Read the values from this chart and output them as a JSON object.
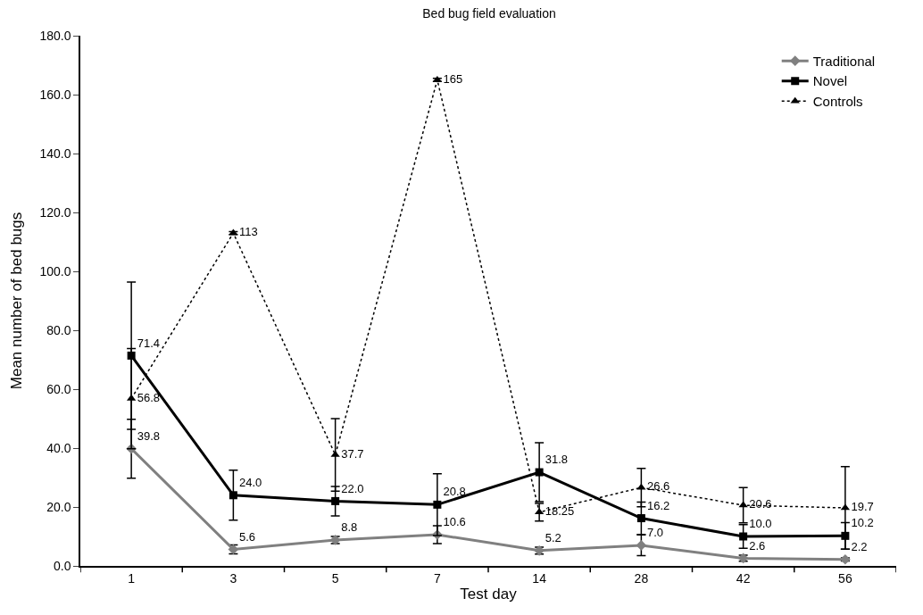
{
  "chart_data": {
    "type": "line",
    "title": "Bed bug field evaluation",
    "xlabel": "Test day",
    "ylabel": "Mean number of bed bugs",
    "categories": [
      "1",
      "3",
      "5",
      "7",
      "14",
      "28",
      "42",
      "56"
    ],
    "series": [
      {
        "name": "Traditional",
        "color": "#808080",
        "marker": "diamond",
        "line_style": "solid",
        "values": [
          39.8,
          5.6,
          8.8,
          10.6,
          5.2,
          7.0,
          2.6,
          2.2
        ],
        "errors": [
          10,
          1.5,
          1.2,
          3,
          1.2,
          3.5,
          1,
          0.5
        ],
        "value_labels": [
          "39.8",
          "5.6",
          "8.8",
          "10.6",
          "5.2",
          "7.0",
          "2.6",
          "2.2"
        ]
      },
      {
        "name": "Novel",
        "color": "#000000",
        "marker": "square",
        "line_style": "solid",
        "values": [
          71.4,
          24.0,
          22.0,
          20.8,
          31.8,
          16.2,
          10.0,
          10.2
        ],
        "errors": [
          25,
          8.5,
          5,
          10.5,
          10,
          5.5,
          4,
          4.5
        ],
        "value_labels": [
          "71.4",
          "24.0",
          "22.0",
          "20.8",
          "31.8",
          "16.2",
          "10.0",
          "10.2"
        ]
      },
      {
        "name": "Controls",
        "color": "#000000",
        "marker": "triangle",
        "line_style": "dotted",
        "values": [
          56.8,
          113,
          37.7,
          165,
          18.25,
          26.6,
          20.6,
          19.7
        ],
        "errors": [
          17,
          0.5,
          12.3,
          0.5,
          3,
          6.5,
          6,
          14
        ],
        "value_labels": [
          "56.8",
          "113",
          "37.7",
          "165",
          "18.25",
          "26.6",
          "20.6",
          "19.7"
        ]
      }
    ],
    "ylim": [
      0,
      180
    ],
    "yticks": [
      {
        "value": 0,
        "label": "0.0"
      },
      {
        "value": 20,
        "label": "20.0"
      },
      {
        "value": 40,
        "label": "40.0"
      },
      {
        "value": 60,
        "label": "60.0"
      },
      {
        "value": 80,
        "label": "80.0"
      },
      {
        "value": 100,
        "label": "100.0"
      },
      {
        "value": 120,
        "label": "120.0"
      },
      {
        "value": 140,
        "label": "140.0"
      },
      {
        "value": 160,
        "label": "160.0"
      },
      {
        "value": 180,
        "label": "180.0"
      }
    ],
    "legend": "top right"
  }
}
